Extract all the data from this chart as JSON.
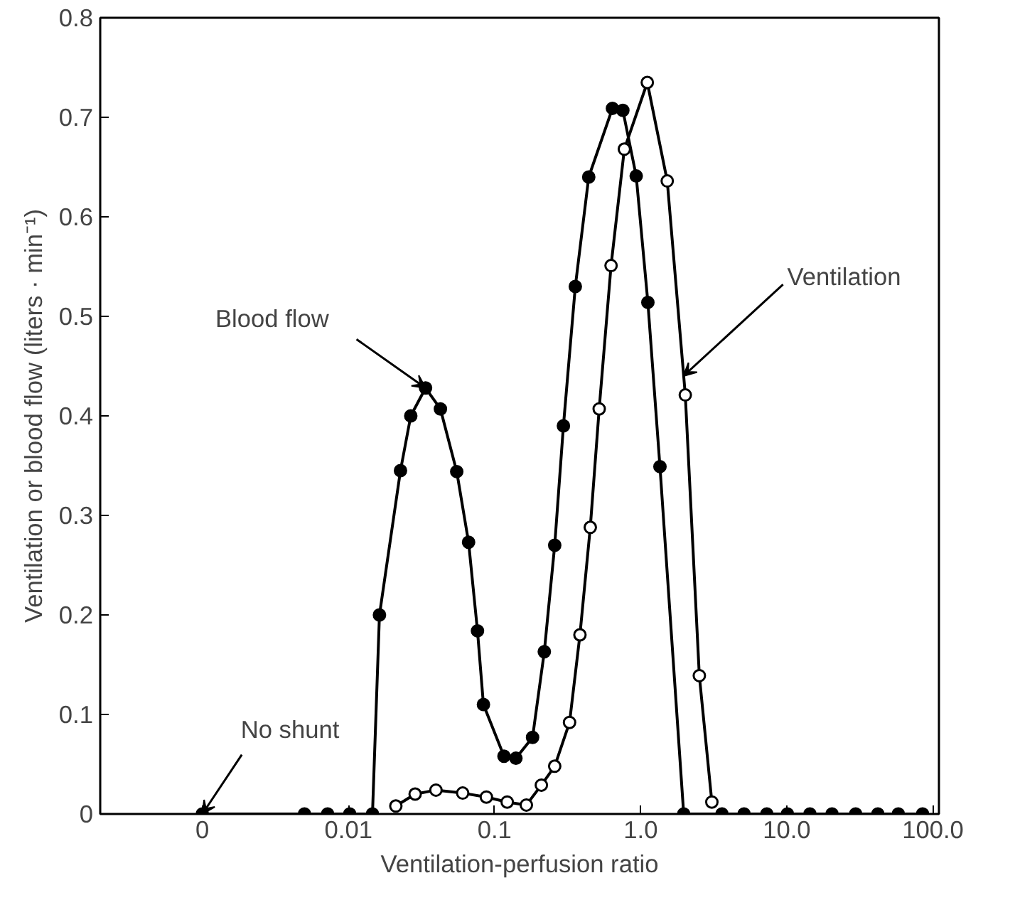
{
  "chart_data": {
    "type": "line",
    "xlabel": "Ventilation-perfusion ratio",
    "ylabel": "Ventilation or blood flow (liters · min⁻¹)",
    "log": "x",
    "xlim": [
      0.0002,
      110
    ],
    "ylim": [
      0,
      0.8
    ],
    "xticks": [
      {
        "value": 0.001,
        "label": "0"
      },
      0.01,
      0.1,
      {
        "value": 1,
        "label": "1.0"
      },
      {
        "value": 10,
        "label": "10.0"
      },
      {
        "value": 100,
        "label": "100.0"
      }
    ],
    "yticks": [
      0,
      0.1,
      0.2,
      0.3,
      0.4,
      0.5,
      0.6,
      0.7,
      0.8
    ],
    "grid": false,
    "marker": "circle",
    "line_style": "solid",
    "series": [
      {
        "color": "#000000",
        "x": [
          0.001,
          0.005,
          0.0072,
          0.0102,
          0.0146,
          0.0163,
          0.0227,
          0.0267,
          0.0337,
          0.0426,
          0.0551,
          0.0664,
          0.0764,
          0.0839,
          0.116,
          0.14,
          0.182,
          0.219,
          0.258,
          0.296,
          0.357,
          0.441,
          0.641,
          0.755,
          0.932,
          1.12,
          1.355,
          1.97,
          3.6,
          5.1,
          7.3,
          10.1,
          14.4,
          20.4,
          29.6,
          42,
          58,
          85
        ],
        "values": [
          0,
          0,
          0,
          0,
          0,
          0.2,
          0.345,
          0.4,
          0.428,
          0.407,
          0.344,
          0.273,
          0.184,
          0.11,
          0.058,
          0.056,
          0.077,
          0.163,
          0.27,
          0.39,
          0.53,
          0.64,
          0.709,
          0.707,
          0.641,
          0.514,
          0.349,
          0,
          0,
          0,
          0,
          0,
          0,
          0,
          0,
          0,
          0,
          0
        ]
      },
      {
        "color": "#000000",
        "x": [
          0.0211,
          0.0286,
          0.0397,
          0.0605,
          0.0879,
          0.122,
          0.165,
          0.209,
          0.258,
          0.326,
          0.384,
          0.452,
          0.52,
          0.627,
          0.773,
          1.11,
          1.52,
          2.02,
          2.52,
          3.07
        ],
        "values": [
          0.008,
          0.02,
          0.024,
          0.021,
          0.017,
          0.012,
          0.009,
          0.029,
          0.048,
          0.092,
          0.18,
          0.288,
          0.407,
          0.551,
          0.668,
          0.735,
          0.636,
          0.421,
          0.139,
          0.012
        ]
      }
    ],
    "annotations": [
      {
        "text": "Blood flow",
        "x": 0.0337,
        "y": 0.428
      },
      {
        "text": "Ventilation",
        "x": 1.96,
        "y": 0.44
      },
      {
        "text": "No shunt",
        "x": 0.001,
        "y": 0
      }
    ]
  }
}
